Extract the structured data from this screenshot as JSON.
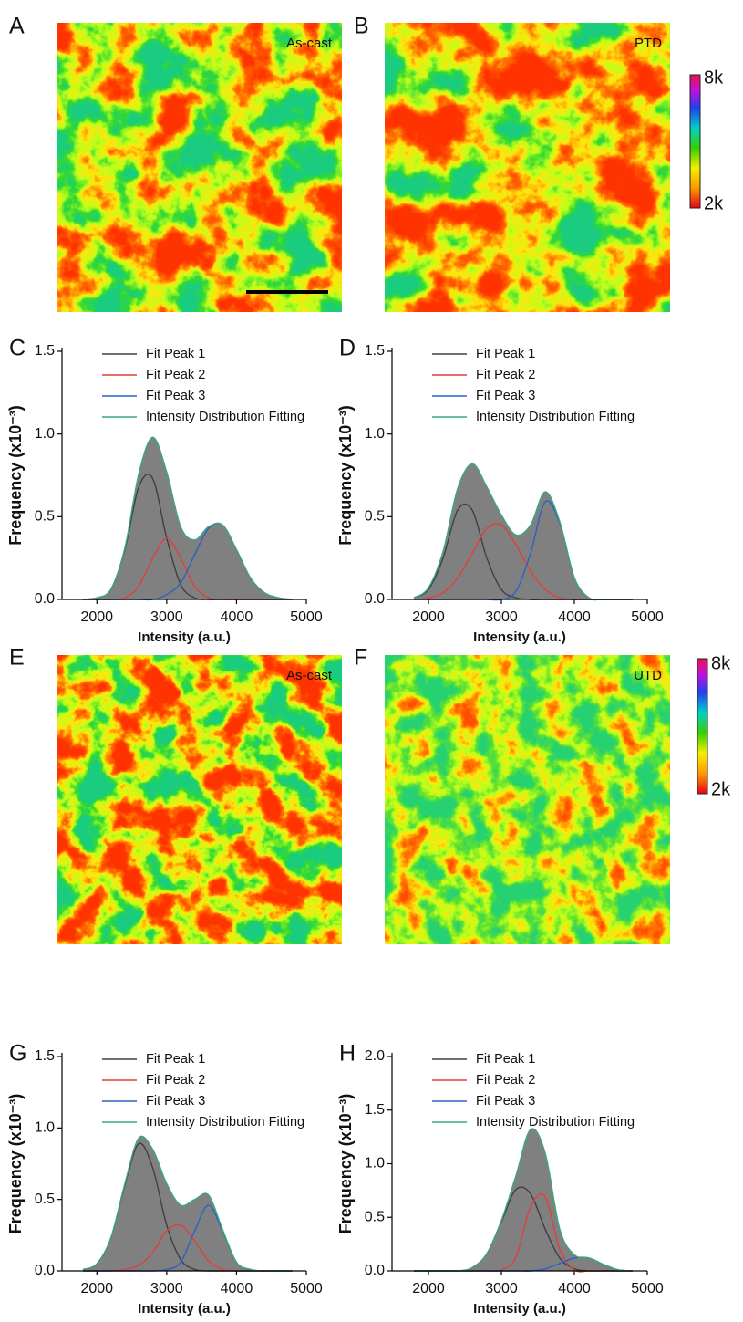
{
  "panels": [
    {
      "letter": "A",
      "label": "As-cast"
    },
    {
      "letter": "B",
      "label": "PTD"
    },
    {
      "letter": "E",
      "label": "As-cast"
    },
    {
      "letter": "F",
      "label": "UTD"
    }
  ],
  "colorbars": [
    {
      "max_label": "8k",
      "min_label": "2k"
    },
    {
      "max_label": "8k",
      "min_label": "2k"
    }
  ],
  "chart_data": [
    {
      "type": "line",
      "panel": "C",
      "xlabel": "Intensity (a.u.)",
      "ylabel": "Frequency (x10⁻³)",
      "legend": "upper left",
      "xlim": [
        1500,
        5000
      ],
      "ylim": [
        0,
        1.5
      ],
      "xticks": [
        2000,
        3000,
        4000,
        5000
      ],
      "yticks": [
        {
          "value": 0,
          "label": "0.0"
        },
        {
          "value": 0.5,
          "label": "0.5"
        },
        {
          "value": 1,
          "label": "1.0"
        },
        {
          "value": 1.5,
          "label": "1.5"
        }
      ],
      "x": [
        1800,
        2000,
        2200,
        2400,
        2600,
        2800,
        3000,
        3200,
        3400,
        3600,
        3800,
        4000,
        4200,
        4400,
        4600,
        4800
      ],
      "series": [
        {
          "name": "Fit Peak 1",
          "color": "#404040",
          "values": [
            0,
            0.01,
            0.06,
            0.3,
            0.68,
            0.73,
            0.37,
            0.09,
            0.01,
            0,
            0,
            0,
            0,
            0,
            0,
            0
          ]
        },
        {
          "name": "Fit Peak 2",
          "color": "#e0403a",
          "values": [
            0,
            0,
            0,
            0.01,
            0.08,
            0.25,
            0.37,
            0.25,
            0.08,
            0.01,
            0,
            0,
            0,
            0,
            0,
            0
          ]
        },
        {
          "name": "Fit Peak 3",
          "color": "#2a62c4",
          "values": [
            0,
            0,
            0,
            0,
            0,
            0,
            0.03,
            0.1,
            0.27,
            0.43,
            0.45,
            0.3,
            0.13,
            0.04,
            0.01,
            0
          ]
        },
        {
          "name": "Intensity Distribution Fitting",
          "color": "#3aa880",
          "fill": "#808080",
          "values": [
            0,
            0.01,
            0.06,
            0.31,
            0.76,
            0.98,
            0.77,
            0.44,
            0.36,
            0.44,
            0.45,
            0.3,
            0.13,
            0.04,
            0.01,
            0
          ]
        }
      ]
    },
    {
      "type": "line",
      "panel": "D",
      "xlabel": "Intensity (a.u.)",
      "ylabel": "Frequency (x10⁻³)",
      "legend": "upper left",
      "xlim": [
        1500,
        5000
      ],
      "ylim": [
        0,
        1.5
      ],
      "xticks": [
        2000,
        3000,
        4000,
        5000
      ],
      "yticks": [
        {
          "value": 0,
          "label": "0.0"
        },
        {
          "value": 0.5,
          "label": "0.5"
        },
        {
          "value": 1,
          "label": "1.0"
        },
        {
          "value": 1.5,
          "label": "1.5"
        }
      ],
      "x": [
        1800,
        2000,
        2200,
        2400,
        2600,
        2800,
        3000,
        3200,
        3400,
        3600,
        3800,
        4000,
        4200,
        4400,
        4600,
        4800
      ],
      "series": [
        {
          "name": "Fit Peak 1",
          "color": "#404040",
          "values": [
            0.01,
            0.06,
            0.25,
            0.54,
            0.54,
            0.25,
            0.06,
            0.01,
            0,
            0,
            0,
            0,
            0,
            0,
            0,
            0
          ]
        },
        {
          "name": "Fit Peak 2",
          "color": "#e0403a",
          "values": [
            0,
            0.01,
            0.04,
            0.13,
            0.28,
            0.43,
            0.45,
            0.33,
            0.17,
            0.06,
            0.01,
            0,
            0,
            0,
            0,
            0
          ]
        },
        {
          "name": "Fit Peak 3",
          "color": "#2a62c4",
          "values": [
            0,
            0,
            0,
            0,
            0,
            0,
            0,
            0.05,
            0.28,
            0.59,
            0.46,
            0.13,
            0.01,
            0,
            0,
            0
          ]
        },
        {
          "name": "Intensity Distribution Fitting",
          "color": "#3aa880",
          "fill": "#808080",
          "values": [
            0.01,
            0.07,
            0.29,
            0.67,
            0.82,
            0.68,
            0.51,
            0.39,
            0.45,
            0.65,
            0.47,
            0.13,
            0.01,
            0,
            0,
            0
          ]
        }
      ]
    },
    {
      "type": "line",
      "panel": "G",
      "xlabel": "Intensity (a.u.)",
      "ylabel": "Frequency (x10⁻³)",
      "legend": "upper left",
      "xlim": [
        1500,
        5000
      ],
      "ylim": [
        0,
        1.5
      ],
      "xticks": [
        2000,
        3000,
        4000,
        5000
      ],
      "yticks": [
        {
          "value": 0,
          "label": "0.0"
        },
        {
          "value": 0.5,
          "label": "0.5"
        },
        {
          "value": 1,
          "label": "1.0"
        },
        {
          "value": 1.5,
          "label": "1.5"
        }
      ],
      "x": [
        1800,
        2000,
        2200,
        2400,
        2600,
        2800,
        3000,
        3200,
        3400,
        3600,
        3800,
        4000,
        4200,
        4400,
        4600,
        4800
      ],
      "series": [
        {
          "name": "Fit Peak 1",
          "color": "#404040",
          "values": [
            0.01,
            0.05,
            0.23,
            0.6,
            0.89,
            0.72,
            0.32,
            0.08,
            0.01,
            0,
            0,
            0,
            0,
            0,
            0,
            0
          ]
        },
        {
          "name": "Fit Peak 2",
          "color": "#e0403a",
          "values": [
            0,
            0,
            0,
            0.01,
            0.04,
            0.13,
            0.28,
            0.32,
            0.21,
            0.07,
            0.01,
            0,
            0,
            0,
            0,
            0
          ]
        },
        {
          "name": "Fit Peak 3",
          "color": "#2a62c4",
          "values": [
            0,
            0,
            0,
            0,
            0,
            0,
            0.01,
            0.06,
            0.28,
            0.46,
            0.28,
            0.06,
            0.01,
            0,
            0,
            0
          ]
        },
        {
          "name": "Intensity Distribution Fitting",
          "color": "#3aa880",
          "fill": "#808080",
          "values": [
            0.01,
            0.05,
            0.23,
            0.61,
            0.93,
            0.85,
            0.61,
            0.46,
            0.5,
            0.53,
            0.29,
            0.06,
            0.01,
            0,
            0,
            0
          ]
        }
      ]
    },
    {
      "type": "line",
      "panel": "H",
      "xlabel": "Intensity (a.u.)",
      "ylabel": "Frequency (x10⁻³)",
      "legend": "upper left",
      "xlim": [
        1500,
        5000
      ],
      "ylim": [
        0,
        2
      ],
      "xticks": [
        2000,
        3000,
        4000,
        5000
      ],
      "yticks": [
        {
          "value": 0,
          "label": "0.0"
        },
        {
          "value": 0.5,
          "label": "0.5"
        },
        {
          "value": 1,
          "label": "1.0"
        },
        {
          "value": 1.5,
          "label": "1.5"
        },
        {
          "value": 2,
          "label": "2.0"
        }
      ],
      "x": [
        1800,
        2000,
        2200,
        2400,
        2600,
        2800,
        3000,
        3200,
        3400,
        3600,
        3800,
        4000,
        4200,
        4400,
        4600,
        4800
      ],
      "series": [
        {
          "name": "Fit Peak 1",
          "color": "#404040",
          "values": [
            0,
            0,
            0,
            0,
            0.03,
            0.16,
            0.46,
            0.76,
            0.72,
            0.39,
            0.12,
            0.02,
            0,
            0,
            0,
            0
          ]
        },
        {
          "name": "Fit Peak 2",
          "color": "#e0403a",
          "values": [
            0,
            0,
            0,
            0,
            0,
            0,
            0.01,
            0.13,
            0.6,
            0.69,
            0.2,
            0.01,
            0,
            0,
            0,
            0
          ]
        },
        {
          "name": "Fit Peak 3",
          "color": "#2a62c4",
          "values": [
            0,
            0,
            0,
            0,
            0,
            0,
            0,
            0,
            0,
            0.02,
            0.07,
            0.12,
            0.12,
            0.06,
            0.01,
            0
          ]
        },
        {
          "name": "Intensity Distribution Fitting",
          "color": "#3aa880",
          "fill": "#808080",
          "values": [
            0,
            0,
            0,
            0,
            0.03,
            0.16,
            0.47,
            0.89,
            1.32,
            1.1,
            0.39,
            0.15,
            0.12,
            0.06,
            0.01,
            0
          ]
        }
      ]
    }
  ]
}
